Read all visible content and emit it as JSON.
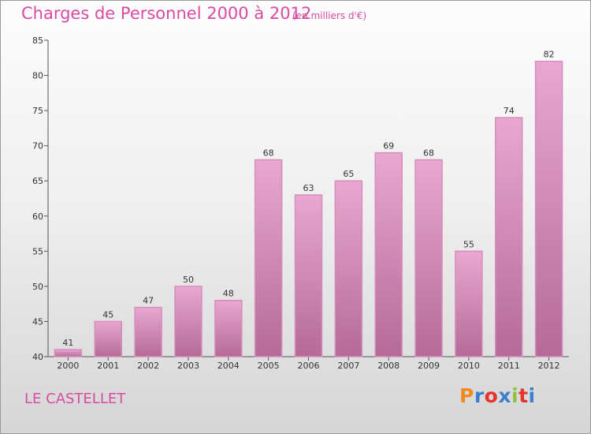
{
  "header": {
    "title": "Charges de Personnel 2000 à 2012",
    "subtitle": "(en milliers d'€)"
  },
  "footer": {
    "commune": "LE CASTELLET",
    "logo_text": "Proxiti",
    "logo_colors": [
      "#f08a1c",
      "#3a7fd0",
      "#e8322c",
      "#3a7fd0",
      "#8cc43c",
      "#e8322c",
      "#3a7fd0"
    ]
  },
  "colors": {
    "text": "#d94aa3",
    "bar_top": "#e8a8d0",
    "bar_bottom": "#b56a98",
    "bar_border": "#d58fbd"
  },
  "chart_data": {
    "type": "bar",
    "title": "Charges de Personnel 2000 à 2012",
    "subtitle": "(en milliers d'€)",
    "categories": [
      "2000",
      "2001",
      "2002",
      "2003",
      "2004",
      "2005",
      "2006",
      "2007",
      "2008",
      "2009",
      "2010",
      "2011",
      "2012"
    ],
    "values": [
      41,
      45,
      47,
      50,
      48,
      68,
      63,
      65,
      69,
      68,
      55,
      74,
      82
    ],
    "ylim": [
      40,
      85
    ],
    "yticks": [
      40,
      45,
      50,
      55,
      60,
      65,
      70,
      75,
      80,
      85
    ],
    "grid": false,
    "data_labels": true
  }
}
